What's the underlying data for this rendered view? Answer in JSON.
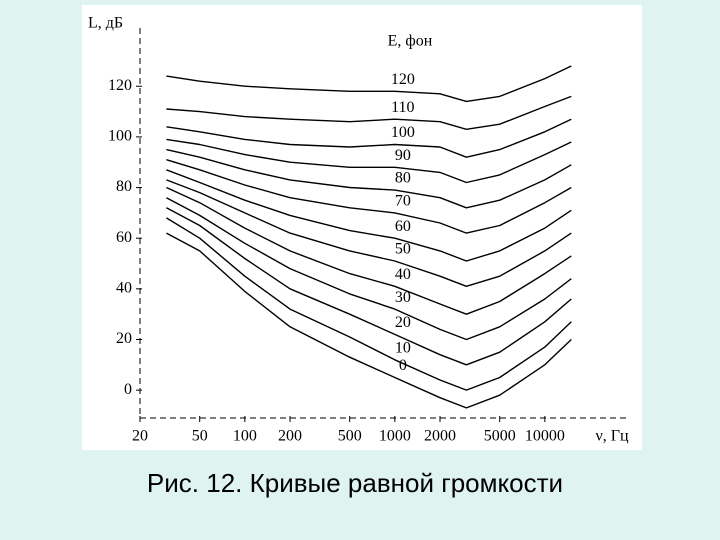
{
  "chart_data": {
    "type": "line",
    "caption": "Рис. 12. Кривые равной громкости",
    "y_label": "L, дБ",
    "x_label": "ν, Гц",
    "legend_title": "E, фон",
    "x": [
      30,
      50,
      100,
      200,
      500,
      1000,
      2000,
      3000,
      5000,
      10000,
      15000
    ],
    "xscale": "log",
    "xlim": [
      20,
      20000
    ],
    "xticks": [
      20,
      50,
      100,
      200,
      500,
      1000,
      2000,
      5000,
      10000
    ],
    "ylim": [
      -11,
      143
    ],
    "yticks": [
      0,
      20,
      40,
      60,
      80,
      100,
      120
    ],
    "series": [
      {
        "name": "0",
        "color": "#000000",
        "values": [
          62,
          55,
          39,
          25,
          13,
          5,
          -3,
          -7,
          -2,
          10,
          20
        ]
      },
      {
        "name": "10",
        "color": "#000000",
        "values": [
          68,
          60,
          45,
          32,
          21,
          12,
          4,
          0,
          5,
          17,
          27
        ]
      },
      {
        "name": "20",
        "color": "#000000",
        "values": [
          72,
          65,
          52,
          40,
          30,
          22,
          14,
          10,
          15,
          27,
          36
        ]
      },
      {
        "name": "30",
        "color": "#000000",
        "values": [
          76,
          69,
          58,
          48,
          38,
          32,
          24,
          20,
          25,
          36,
          44
        ]
      },
      {
        "name": "40",
        "color": "#000000",
        "values": [
          80,
          74,
          64,
          55,
          46,
          41,
          34,
          30,
          35,
          46,
          53
        ]
      },
      {
        "name": "50",
        "color": "#000000",
        "values": [
          83,
          78,
          70,
          62,
          55,
          51,
          45,
          41,
          45,
          55,
          62
        ]
      },
      {
        "name": "60",
        "color": "#000000",
        "values": [
          87,
          82,
          75,
          69,
          63,
          60,
          55,
          51,
          55,
          64,
          71
        ]
      },
      {
        "name": "70",
        "color": "#000000",
        "values": [
          91,
          87,
          81,
          76,
          72,
          70,
          66,
          62,
          65,
          74,
          80
        ]
      },
      {
        "name": "80",
        "color": "#000000",
        "values": [
          95,
          92,
          87,
          83,
          80,
          79,
          76,
          72,
          75,
          83,
          89
        ]
      },
      {
        "name": "90",
        "color": "#000000",
        "values": [
          99,
          97,
          93,
          90,
          88,
          88,
          86,
          82,
          85,
          93,
          98
        ]
      },
      {
        "name": "100",
        "color": "#000000",
        "values": [
          104,
          102,
          99,
          97,
          96,
          97,
          96,
          92,
          95,
          102,
          107
        ]
      },
      {
        "name": "110",
        "color": "#000000",
        "values": [
          111,
          110,
          108,
          107,
          106,
          107,
          106,
          103,
          105,
          112,
          116
        ]
      },
      {
        "name": "120",
        "color": "#000000",
        "values": [
          124,
          122,
          120,
          119,
          118,
          118,
          117,
          114,
          116,
          123,
          128
        ]
      }
    ]
  }
}
